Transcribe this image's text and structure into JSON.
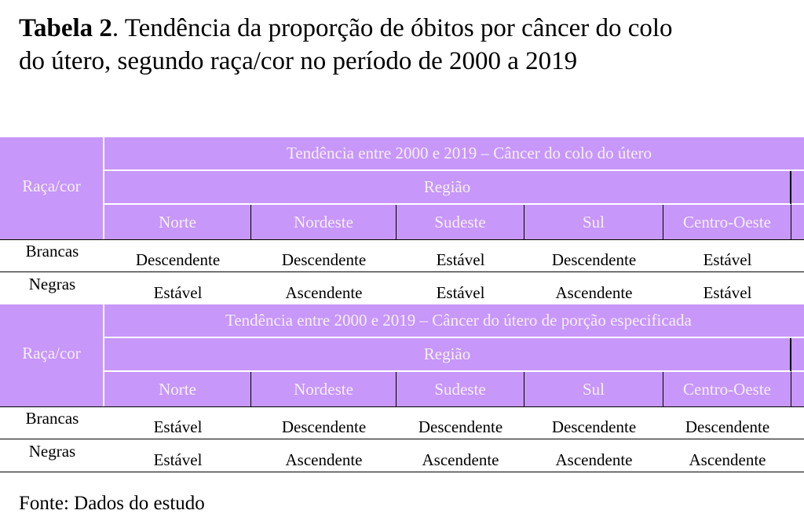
{
  "header": {
    "title_bold": "Tabela 2",
    "title_line1": ". Tendência da proporção de óbitos por câncer do colo",
    "title_line2": "do útero, segundo raça/cor no período de 2000 a 2019"
  },
  "sections": [
    {
      "title": "Tendência entre 2000 e 2019 – Câncer do colo do útero",
      "row_header": "Raça/cor",
      "group": "Região",
      "columns": [
        "Norte",
        "Nordeste",
        "Sudeste",
        "Sul",
        "Centro-Oeste"
      ],
      "rows": [
        {
          "label": "Brancas",
          "values": [
            "Descendente",
            "Descendente",
            "Estável",
            "Descendente",
            "Estável"
          ]
        },
        {
          "label": "Negras",
          "values": [
            "Estável",
            "Ascendente",
            "Estável",
            "Ascendente",
            "Estável"
          ]
        }
      ]
    },
    {
      "title": "Tendência entre 2000 e 2019 – Câncer do útero de porção especificada",
      "row_header": "Raça/cor",
      "group": "Região",
      "columns": [
        "Norte",
        "Nordeste",
        "Sudeste",
        "Sul",
        "Centro-Oeste"
      ],
      "rows": [
        {
          "label": "Brancas",
          "values": [
            "Estável",
            "Descendente",
            "Descendente",
            "Descendente",
            "Descendente"
          ]
        },
        {
          "label": "Negras",
          "values": [
            "Estável",
            "Ascendente",
            "Ascendente",
            "Ascendente",
            "Ascendente"
          ]
        }
      ]
    }
  ],
  "footer": {
    "source": "Fonte: Dados do estudo"
  }
}
